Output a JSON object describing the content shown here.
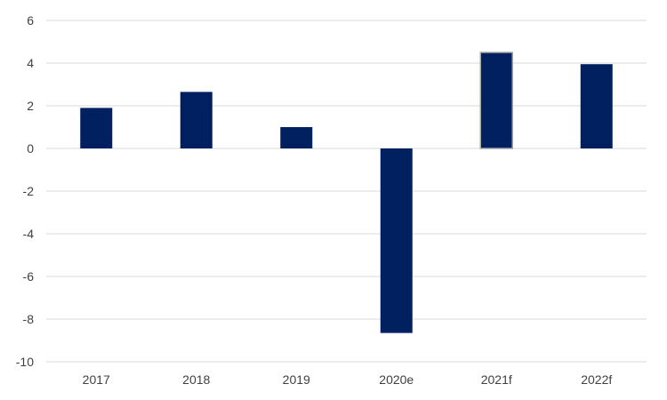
{
  "chart_data": {
    "type": "bar",
    "title": "",
    "xlabel": "",
    "ylabel": "",
    "categories": [
      "2017",
      "2018",
      "2019",
      "2020e",
      "2021f",
      "2022f"
    ],
    "values": [
      1.9,
      2.65,
      1.0,
      -8.65,
      4.5,
      3.95
    ],
    "ylim": [
      -10,
      6
    ],
    "yticks": [
      6,
      4,
      2,
      0,
      -2,
      -4,
      -6,
      -8,
      -10
    ],
    "ytick_labels": [
      "6",
      "4",
      "2",
      "0",
      "-2",
      "-4",
      "-6",
      "-8",
      "-10"
    ],
    "grid": true,
    "legend": "none",
    "colors": {
      "bar": "#002060",
      "highlight_border": "#a6a6a6",
      "grid": "#d9d9d9",
      "text": "#404040"
    },
    "highlighted_category": "2021f"
  }
}
